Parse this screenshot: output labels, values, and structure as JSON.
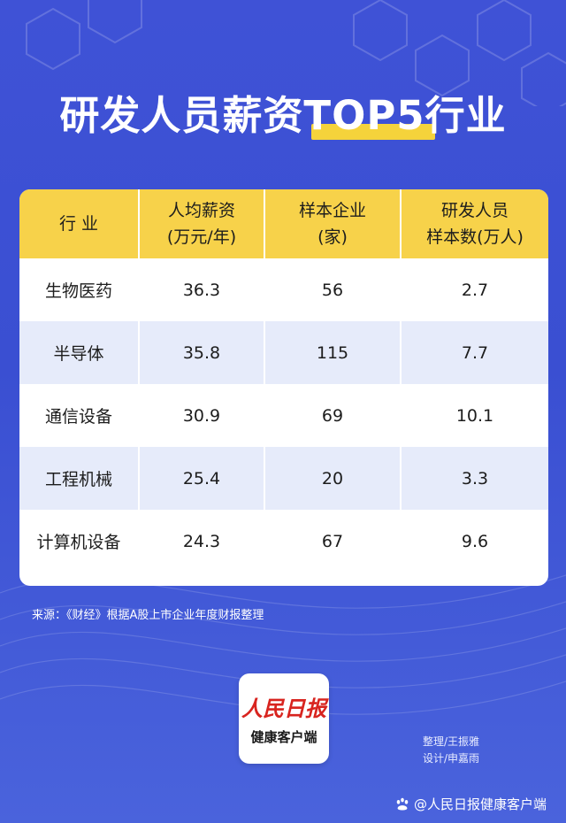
{
  "title": "研发人员薪资TOP5行业",
  "chart_data": {
    "type": "table",
    "title": "研发人员薪资TOP5行业",
    "columns": [
      [
        "行 业"
      ],
      [
        "人均薪资",
        "(万元/年)"
      ],
      [
        "样本企业",
        "(家)"
      ],
      [
        "研发人员",
        "样本数(万人)"
      ]
    ],
    "rows": [
      {
        "industry": "生物医药",
        "salary": "36.3",
        "companies": "56",
        "staff": "2.7"
      },
      {
        "industry": "半导体",
        "salary": "35.8",
        "companies": "115",
        "staff": "7.7"
      },
      {
        "industry": "通信设备",
        "salary": "30.9",
        "companies": "69",
        "staff": "10.1"
      },
      {
        "industry": "工程机械",
        "salary": "25.4",
        "companies": "20",
        "staff": "3.3"
      },
      {
        "industry": "计算机设备",
        "salary": "24.3",
        "companies": "67",
        "staff": "9.6"
      }
    ]
  },
  "source": "来源：《财经》根据A股上市企业年度财报整理",
  "logo": {
    "main": "人民日报",
    "sub": "健康客户端"
  },
  "credits": {
    "editor": "整理/王振雅",
    "designer": "设计/申嘉雨"
  },
  "watermark": "@人民日报健康客户端",
  "colors": {
    "background": "#3f52d6",
    "header": "#f7d24a",
    "alt_row": "#e6ebfa",
    "accent": "#f5d33b"
  }
}
